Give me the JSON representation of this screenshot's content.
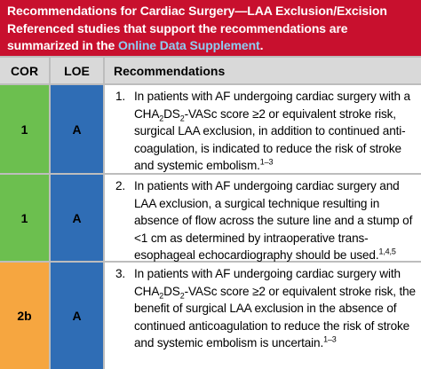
{
  "header": {
    "title": "Recommendations for Cardiac Surgery—LAA Exclusion/Excision",
    "subtitle": "Referenced studies that support the recommendations are summarized in the ",
    "link": "Online Data Supplement",
    "end": "."
  },
  "table": {
    "columns": [
      "COR",
      "LOE",
      "Recommendations"
    ],
    "rows": [
      {
        "cor": "1",
        "loe": "A",
        "number": "1.",
        "text": [
          {
            "t": "In patients with AF undergoing cardiac surgery with a CHA"
          },
          {
            "sub": "2"
          },
          {
            "t": "DS"
          },
          {
            "sub": "2"
          },
          {
            "t": "-VASc score ≥2 or equivalent stroke risk, surgical LAA exclusion, in addition to continued anti-coagulation, is indicated to reduce the risk of stroke and systemic embolism."
          },
          {
            "sup": "1–3"
          }
        ]
      },
      {
        "cor": "1",
        "loe": "A",
        "number": "2.",
        "text": [
          {
            "t": "In patients with AF undergoing cardiac surgery and LAA exclusion, a surgical technique resulting in absence of flow across the suture line and a stump of <1 cm as determined by intraoperative trans-esophageal echocardiography should be used."
          },
          {
            "sup": "1,4,5"
          }
        ]
      },
      {
        "cor": "2b",
        "loe": "A",
        "number": "3.",
        "text": [
          {
            "t": "In patients with AF undergoing cardiac surgery with CHA"
          },
          {
            "sub": "2"
          },
          {
            "t": "DS"
          },
          {
            "sub": "2"
          },
          {
            "t": "-VASc score ≥2 or equivalent stroke risk, the benefit of surgical LAA exclusion in the absence of continued anticoagulation to reduce the risk of stroke and systemic embolism is uncertain."
          },
          {
            "sup": "1–3"
          }
        ]
      }
    ]
  }
}
